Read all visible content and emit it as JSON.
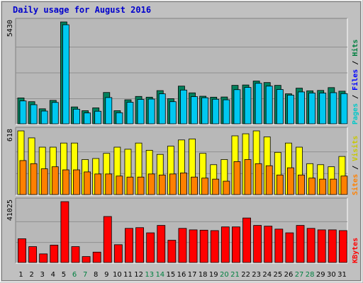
{
  "title": "Daily usage for August 2016",
  "colors": {
    "background": "#c0c0c0",
    "plot_bg": "#b8b8b8",
    "hits": "#00805c",
    "files": "#00c8f0",
    "pages": "#00e0e0",
    "visits": "#ffff00",
    "sites": "#ff8000",
    "kbytes": "#ff0000",
    "title": "#0000cc",
    "weekend_label": "#008040"
  },
  "panels": {
    "top": {
      "ymax_label": "5430",
      "legend": [
        {
          "text": "Pages",
          "color": "#00c8c8"
        },
        {
          "text": " / ",
          "color": "#000000"
        },
        {
          "text": "Files",
          "color": "#0000ff"
        },
        {
          "text": " / ",
          "color": "#000000"
        },
        {
          "text": "Hits",
          "color": "#008040"
        }
      ]
    },
    "middle": {
      "ymax_label": "618",
      "legend": [
        {
          "text": "Sites",
          "color": "#ff8000"
        },
        {
          "text": " / ",
          "color": "#000000"
        },
        {
          "text": "Visits",
          "color": "#c8c800"
        }
      ]
    },
    "bottom": {
      "ymax_label": "41025",
      "legend": [
        {
          "text": "KBytes",
          "color": "#ff0000"
        }
      ]
    }
  },
  "chart_data": {
    "type": "bar",
    "title": "Daily usage for August 2016",
    "categories": [
      "1",
      "2",
      "3",
      "4",
      "5",
      "6",
      "7",
      "8",
      "9",
      "10",
      "11",
      "12",
      "13",
      "14",
      "15",
      "16",
      "17",
      "18",
      "19",
      "20",
      "21",
      "22",
      "23",
      "24",
      "25",
      "26",
      "27",
      "28",
      "29",
      "30",
      "31"
    ],
    "weekend_days": [
      "6",
      "7",
      "13",
      "14",
      "20",
      "21",
      "27",
      "28"
    ],
    "panels": [
      {
        "name": "Hits / Files / Pages",
        "ylim": [
          0,
          5430
        ],
        "series": [
          {
            "name": "Hits",
            "values": [
              1380,
              1180,
              800,
              1250,
              5430,
              900,
              700,
              850,
              1670,
              700,
              1280,
              1460,
              1420,
              1770,
              1340,
              2010,
              1650,
              1470,
              1420,
              1430,
              2050,
              2070,
              2280,
              2200,
              2050,
              1600,
              1900,
              1760,
              1780,
              1930,
              1740
            ]
          },
          {
            "name": "Files",
            "values": [
              1220,
              1020,
              680,
              1140,
              5280,
              780,
              580,
              670,
              1400,
              590,
              1150,
              1300,
              1320,
              1600,
              1180,
              1800,
              1450,
              1390,
              1310,
              1280,
              1820,
              1940,
              2160,
              2010,
              1830,
              1530,
              1700,
              1640,
              1640,
              1660,
              1610
            ]
          }
        ]
      },
      {
        "name": "Visits / Sites",
        "ylim": [
          0,
          618
        ],
        "series": [
          {
            "name": "Visits",
            "values": [
              618,
              550,
              460,
              460,
              500,
              500,
              340,
              350,
              400,
              460,
              440,
              500,
              430,
              390,
              470,
              530,
              540,
              400,
              290,
              340,
              570,
              590,
              618,
              560,
              410,
              500,
              460,
              300,
              290,
              270,
              370
            ]
          },
          {
            "name": "Sites",
            "values": [
              330,
              300,
              250,
              270,
              240,
              240,
              220,
              200,
              200,
              180,
              170,
              170,
              200,
              190,
              200,
              210,
              170,
              160,
              150,
              130,
              320,
              340,
              300,
              280,
              190,
              260,
              190,
              160,
              150,
              150,
              180
            ]
          }
        ]
      },
      {
        "name": "KBytes",
        "ylim": [
          0,
          41025
        ],
        "series": [
          {
            "name": "KBytes",
            "values": [
              16000,
              10700,
              5800,
              11700,
              41025,
              10700,
              4000,
              7000,
              31000,
              12000,
              23000,
              23500,
              20000,
              25000,
              15000,
              23000,
              22000,
              21800,
              21500,
              24000,
              24000,
              30000,
              25000,
              24500,
              22500,
              20000,
              25000,
              23000,
              22000,
              22000,
              21500
            ]
          }
        ]
      }
    ]
  }
}
